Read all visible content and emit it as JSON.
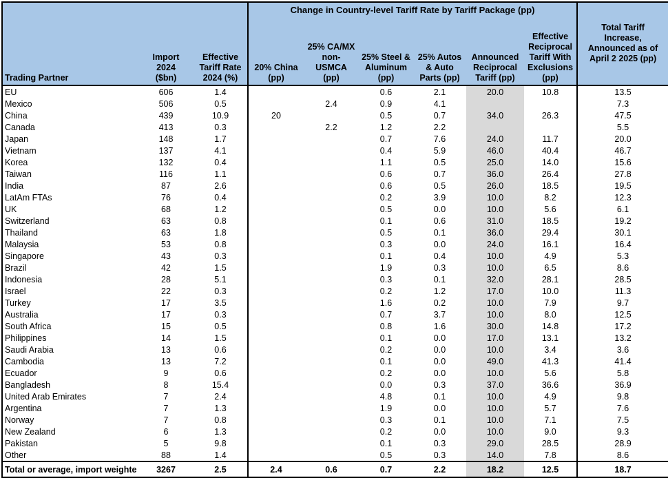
{
  "chart_data": {
    "type": "table",
    "title": "Change in Country-level Tariff Rate by Tariff Package (pp)",
    "colors": {
      "header_bg": "#A8C7E7",
      "highlight_column_bg": "#D9D9D9",
      "border": "#000000",
      "text": "#000000"
    },
    "column_headers": [
      "Trading Partner",
      "Import\n2024\n($bn)",
      "Effective\nTariff Rate\n2024 (%)",
      "20% China\n(pp)",
      "25% CA/MX\nnon-\nUSMCA\n(pp)",
      "25% Steel &\nAluminum\n(pp)",
      "25% Autos\n& Auto\nParts (pp)",
      "Announced\nReciprocal\nTariff (pp)",
      "Effective\nReciprocal\nTariff With\nExclusions\n(pp)",
      "Total Tariff\nIncrease,\nAnnounced as of\nApril 2 2025 (pp)"
    ],
    "rows": [
      [
        "EU",
        "606",
        "1.4",
        "",
        "",
        "0.6",
        "2.1",
        "20.0",
        "10.8",
        "13.5"
      ],
      [
        "Mexico",
        "506",
        "0.5",
        "",
        "2.4",
        "0.9",
        "4.1",
        "",
        "",
        "7.3"
      ],
      [
        "China",
        "439",
        "10.9",
        "20",
        "",
        "0.5",
        "0.7",
        "34.0",
        "26.3",
        "47.5"
      ],
      [
        "Canada",
        "413",
        "0.3",
        "",
        "2.2",
        "1.2",
        "2.2",
        "",
        "",
        "5.5"
      ],
      [
        "Japan",
        "148",
        "1.7",
        "",
        "",
        "0.7",
        "7.6",
        "24.0",
        "11.7",
        "20.0"
      ],
      [
        "Vietnam",
        "137",
        "4.1",
        "",
        "",
        "0.4",
        "5.9",
        "46.0",
        "40.4",
        "46.7"
      ],
      [
        "Korea",
        "132",
        "0.4",
        "",
        "",
        "1.1",
        "0.5",
        "25.0",
        "14.0",
        "15.6"
      ],
      [
        "Taiwan",
        "116",
        "1.1",
        "",
        "",
        "0.6",
        "0.7",
        "36.0",
        "26.4",
        "27.8"
      ],
      [
        "India",
        "87",
        "2.6",
        "",
        "",
        "0.6",
        "0.5",
        "26.0",
        "18.5",
        "19.5"
      ],
      [
        "LatAm FTAs",
        "76",
        "0.4",
        "",
        "",
        "0.2",
        "3.9",
        "10.0",
        "8.2",
        "12.3"
      ],
      [
        "UK",
        "68",
        "1.2",
        "",
        "",
        "0.5",
        "0.0",
        "10.0",
        "5.6",
        "6.1"
      ],
      [
        "Switzerland",
        "63",
        "0.8",
        "",
        "",
        "0.1",
        "0.6",
        "31.0",
        "18.5",
        "19.2"
      ],
      [
        "Thailand",
        "63",
        "1.8",
        "",
        "",
        "0.5",
        "0.1",
        "36.0",
        "29.4",
        "30.1"
      ],
      [
        "Malaysia",
        "53",
        "0.8",
        "",
        "",
        "0.3",
        "0.0",
        "24.0",
        "16.1",
        "16.4"
      ],
      [
        "Singapore",
        "43",
        "0.3",
        "",
        "",
        "0.1",
        "0.4",
        "10.0",
        "4.9",
        "5.3"
      ],
      [
        "Brazil",
        "42",
        "1.5",
        "",
        "",
        "1.9",
        "0.3",
        "10.0",
        "6.5",
        "8.6"
      ],
      [
        "Indonesia",
        "28",
        "5.1",
        "",
        "",
        "0.3",
        "0.1",
        "32.0",
        "28.1",
        "28.5"
      ],
      [
        "Israel",
        "22",
        "0.3",
        "",
        "",
        "0.2",
        "1.2",
        "17.0",
        "10.0",
        "11.3"
      ],
      [
        "Turkey",
        "17",
        "3.5",
        "",
        "",
        "1.6",
        "0.2",
        "10.0",
        "7.9",
        "9.7"
      ],
      [
        "Australia",
        "17",
        "0.3",
        "",
        "",
        "0.7",
        "3.7",
        "10.0",
        "8.0",
        "12.5"
      ],
      [
        "South Africa",
        "15",
        "0.5",
        "",
        "",
        "0.8",
        "1.6",
        "30.0",
        "14.8",
        "17.2"
      ],
      [
        "Philippines",
        "14",
        "1.5",
        "",
        "",
        "0.1",
        "0.0",
        "17.0",
        "13.1",
        "13.2"
      ],
      [
        "Saudi Arabia",
        "13",
        "0.6",
        "",
        "",
        "0.2",
        "0.0",
        "10.0",
        "3.4",
        "3.6"
      ],
      [
        "Cambodia",
        "13",
        "7.2",
        "",
        "",
        "0.1",
        "0.0",
        "49.0",
        "41.3",
        "41.4"
      ],
      [
        "Ecuador",
        "9",
        "0.6",
        "",
        "",
        "0.2",
        "0.0",
        "10.0",
        "5.6",
        "5.8"
      ],
      [
        "Bangladesh",
        "8",
        "15.4",
        "",
        "",
        "0.0",
        "0.3",
        "37.0",
        "36.6",
        "36.9"
      ],
      [
        "United Arab Emirates",
        "7",
        "2.4",
        "",
        "",
        "4.8",
        "0.1",
        "10.0",
        "4.9",
        "9.8"
      ],
      [
        "Argentina",
        "7",
        "1.3",
        "",
        "",
        "1.9",
        "0.0",
        "10.0",
        "5.7",
        "7.6"
      ],
      [
        "Norway",
        "7",
        "0.8",
        "",
        "",
        "0.3",
        "0.1",
        "10.0",
        "7.1",
        "7.5"
      ],
      [
        "New Zealand",
        "6",
        "1.3",
        "",
        "",
        "0.2",
        "0.0",
        "10.0",
        "9.0",
        "9.3"
      ],
      [
        "Pakistan",
        "5",
        "9.8",
        "",
        "",
        "0.1",
        "0.3",
        "29.0",
        "28.5",
        "28.9"
      ],
      [
        "Other",
        "88",
        "1.4",
        "",
        "",
        "0.5",
        "0.3",
        "14.0",
        "7.8",
        "8.6"
      ]
    ],
    "total_row": [
      "Total or average, import weighte",
      "3267",
      "2.5",
      "2.4",
      "0.6",
      "0.7",
      "2.2",
      "18.2",
      "12.5",
      "18.7"
    ]
  }
}
